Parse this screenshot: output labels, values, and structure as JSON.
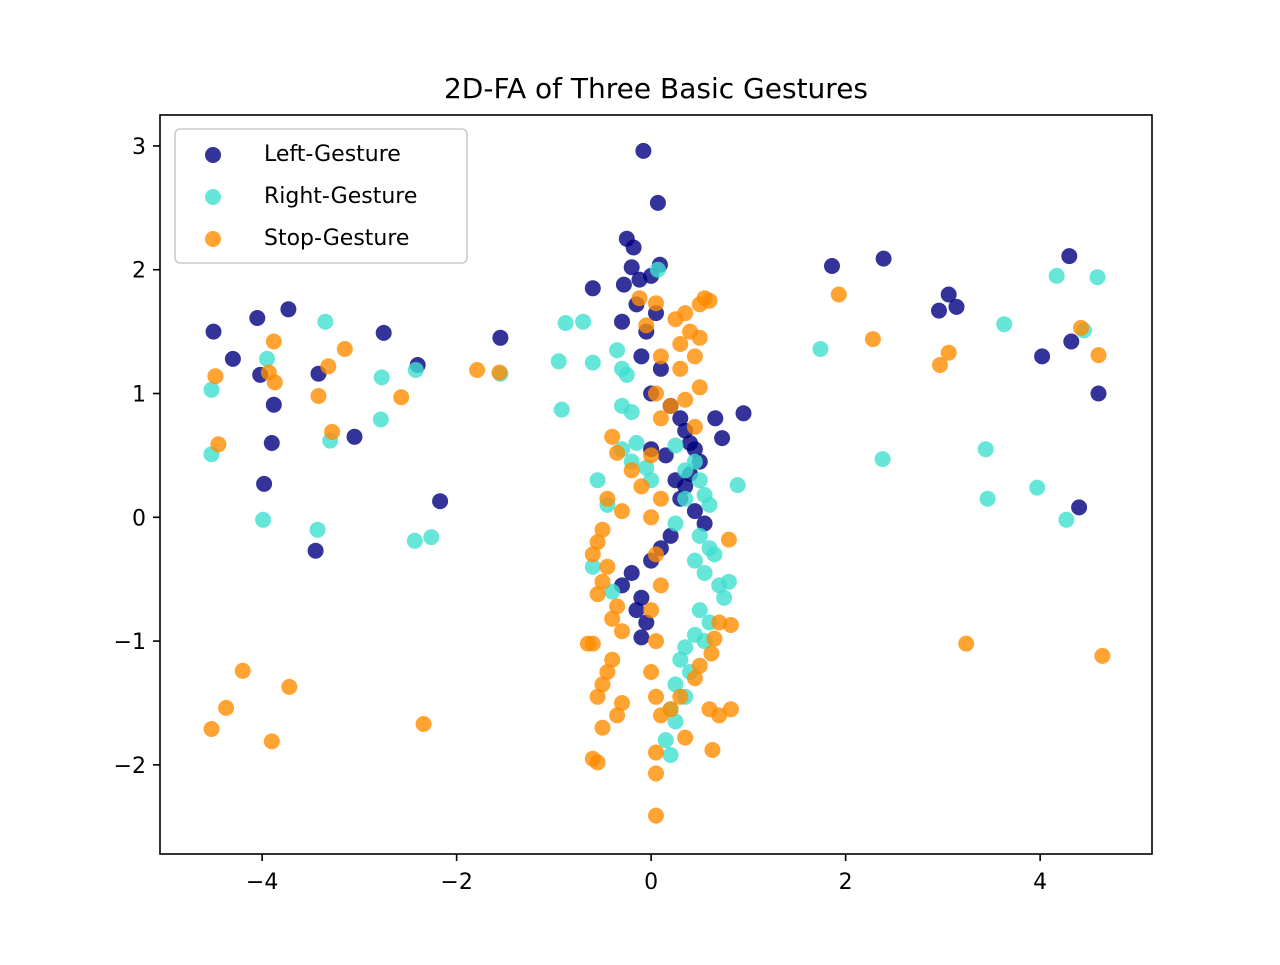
{
  "chart_data": {
    "type": "scatter",
    "title": "2D-FA of Three Basic Gestures",
    "xlabel": "",
    "ylabel": "",
    "xlim": [
      -5.05,
      5.15
    ],
    "ylim": [
      -2.72,
      3.25
    ],
    "xticks": [
      {
        "value": -4,
        "label": "−4"
      },
      {
        "value": -2,
        "label": "−2"
      },
      {
        "value": 0,
        "label": "0"
      },
      {
        "value": 2,
        "label": "2"
      },
      {
        "value": 4,
        "label": "4"
      }
    ],
    "yticks": [
      {
        "value": -2,
        "label": "−2"
      },
      {
        "value": -1,
        "label": "−1"
      },
      {
        "value": 0,
        "label": "0"
      },
      {
        "value": 1,
        "label": "1"
      },
      {
        "value": 2,
        "label": "2"
      },
      {
        "value": 3,
        "label": "3"
      }
    ],
    "grid": false,
    "legend_position": "top-left",
    "series": [
      {
        "name": "Left-Gesture",
        "color": "#000080",
        "points": [
          [
            -0.08,
            2.96
          ],
          [
            0.07,
            2.54
          ],
          [
            -0.25,
            2.25
          ],
          [
            -0.18,
            2.18
          ],
          [
            -0.2,
            2.02
          ],
          [
            0.09,
            2.04
          ],
          [
            -0.28,
            1.88
          ],
          [
            -0.6,
            1.85
          ],
          [
            -0.12,
            1.92
          ],
          [
            -0.3,
            1.58
          ],
          [
            0.0,
            1.95
          ],
          [
            -0.15,
            1.72
          ],
          [
            0.05,
            1.65
          ],
          [
            -0.05,
            1.5
          ],
          [
            -0.1,
            1.3
          ],
          [
            0.1,
            1.2
          ],
          [
            0.0,
            1.0
          ],
          [
            0.2,
            0.9
          ],
          [
            0.3,
            0.8
          ],
          [
            0.35,
            0.7
          ],
          [
            0.4,
            0.6
          ],
          [
            0.45,
            0.55
          ],
          [
            0.5,
            0.45
          ],
          [
            0.4,
            0.35
          ],
          [
            0.35,
            0.25
          ],
          [
            0.3,
            0.15
          ],
          [
            0.45,
            0.05
          ],
          [
            0.55,
            -0.05
          ],
          [
            0.2,
            -0.15
          ],
          [
            0.1,
            -0.25
          ],
          [
            0.0,
            -0.35
          ],
          [
            -0.2,
            -0.45
          ],
          [
            -0.3,
            -0.55
          ],
          [
            -0.1,
            -0.65
          ],
          [
            -0.15,
            -0.75
          ],
          [
            -0.05,
            -0.85
          ],
          [
            -0.1,
            -0.97
          ],
          [
            0.15,
            0.5
          ],
          [
            0.25,
            0.3
          ],
          [
            0.0,
            0.55
          ],
          [
            0.66,
            0.8
          ],
          [
            0.73,
            0.64
          ],
          [
            0.95,
            0.84
          ],
          [
            1.86,
            2.03
          ],
          [
            2.39,
            2.09
          ],
          [
            2.96,
            1.67
          ],
          [
            3.06,
            1.8
          ],
          [
            3.14,
            1.7
          ],
          [
            4.3,
            2.11
          ],
          [
            4.32,
            1.42
          ],
          [
            4.02,
            1.3
          ],
          [
            4.4,
            0.08
          ],
          [
            4.6,
            1.0
          ],
          [
            -4.5,
            1.5
          ],
          [
            -4.3,
            1.28
          ],
          [
            -4.05,
            1.61
          ],
          [
            -4.02,
            1.15
          ],
          [
            -3.73,
            1.68
          ],
          [
            -3.88,
            0.91
          ],
          [
            -3.9,
            0.6
          ],
          [
            -3.98,
            0.27
          ],
          [
            -3.42,
            1.16
          ],
          [
            -3.05,
            0.65
          ],
          [
            -2.75,
            1.49
          ],
          [
            -2.4,
            1.23
          ],
          [
            -2.17,
            0.13
          ],
          [
            -1.55,
            1.45
          ],
          [
            -3.45,
            -0.27
          ]
        ]
      },
      {
        "name": "Right-Gesture",
        "color": "#40E0D0",
        "points": [
          [
            0.07,
            2.0
          ],
          [
            -0.88,
            1.57
          ],
          [
            -0.7,
            1.58
          ],
          [
            -0.95,
            1.26
          ],
          [
            -0.35,
            1.35
          ],
          [
            -0.6,
            1.25
          ],
          [
            -0.3,
            1.2
          ],
          [
            -0.25,
            1.15
          ],
          [
            -0.92,
            0.87
          ],
          [
            -0.3,
            0.9
          ],
          [
            -0.2,
            0.85
          ],
          [
            -0.15,
            0.6
          ],
          [
            -0.3,
            0.55
          ],
          [
            -0.2,
            0.45
          ],
          [
            -0.05,
            0.4
          ],
          [
            0.0,
            0.3
          ],
          [
            0.25,
            0.58
          ],
          [
            0.35,
            0.38
          ],
          [
            0.45,
            0.45
          ],
          [
            0.5,
            0.3
          ],
          [
            0.55,
            0.18
          ],
          [
            0.6,
            0.1
          ],
          [
            0.35,
            0.15
          ],
          [
            0.25,
            -0.05
          ],
          [
            0.5,
            -0.15
          ],
          [
            0.6,
            -0.25
          ],
          [
            0.45,
            -0.35
          ],
          [
            0.55,
            -0.45
          ],
          [
            0.7,
            -0.55
          ],
          [
            0.75,
            -0.65
          ],
          [
            0.5,
            -0.75
          ],
          [
            0.6,
            -0.85
          ],
          [
            0.45,
            -0.95
          ],
          [
            0.35,
            -1.05
          ],
          [
            0.3,
            -1.15
          ],
          [
            0.4,
            -1.25
          ],
          [
            0.25,
            -1.35
          ],
          [
            0.35,
            -1.45
          ],
          [
            0.2,
            -1.55
          ],
          [
            0.25,
            -1.65
          ],
          [
            0.15,
            -1.8
          ],
          [
            0.2,
            -1.92
          ],
          [
            -0.55,
            0.3
          ],
          [
            -0.45,
            0.1
          ],
          [
            -0.6,
            -0.4
          ],
          [
            -0.4,
            -0.6
          ],
          [
            0.55,
            -1.0
          ],
          [
            0.8,
            -0.52
          ],
          [
            0.89,
            0.26
          ],
          [
            0.65,
            -0.3
          ],
          [
            1.74,
            1.36
          ],
          [
            2.38,
            0.47
          ],
          [
            3.44,
            0.55
          ],
          [
            3.46,
            0.15
          ],
          [
            3.63,
            1.56
          ],
          [
            3.97,
            0.24
          ],
          [
            4.17,
            1.95
          ],
          [
            4.27,
            -0.02
          ],
          [
            4.45,
            1.51
          ],
          [
            4.59,
            1.94
          ],
          [
            -4.52,
            1.03
          ],
          [
            -4.52,
            0.51
          ],
          [
            -3.95,
            1.28
          ],
          [
            -3.35,
            1.58
          ],
          [
            -3.3,
            0.62
          ],
          [
            -3.43,
            -0.1
          ],
          [
            -2.77,
            1.13
          ],
          [
            -2.78,
            0.79
          ],
          [
            -2.42,
            1.19
          ],
          [
            -2.43,
            -0.19
          ],
          [
            -2.26,
            -0.16
          ],
          [
            -1.55,
            1.16
          ],
          [
            -3.99,
            -0.02
          ]
        ]
      },
      {
        "name": "Stop-Gesture",
        "color": "#FF8C00",
        "points": [
          [
            0.05,
            1.73
          ],
          [
            -0.12,
            1.77
          ],
          [
            0.25,
            1.6
          ],
          [
            0.35,
            1.65
          ],
          [
            0.5,
            1.72
          ],
          [
            0.55,
            1.77
          ],
          [
            0.6,
            1.75
          ],
          [
            0.4,
            1.5
          ],
          [
            0.5,
            1.45
          ],
          [
            0.3,
            1.4
          ],
          [
            0.45,
            1.3
          ],
          [
            0.3,
            1.2
          ],
          [
            0.5,
            1.05
          ],
          [
            0.35,
            0.95
          ],
          [
            0.2,
            0.9
          ],
          [
            0.1,
            0.8
          ],
          [
            0.45,
            0.73
          ],
          [
            -0.4,
            0.65
          ],
          [
            -0.35,
            0.52
          ],
          [
            -0.2,
            0.38
          ],
          [
            -0.1,
            0.25
          ],
          [
            -0.45,
            0.15
          ],
          [
            -0.3,
            0.05
          ],
          [
            -0.5,
            -0.1
          ],
          [
            -0.55,
            -0.2
          ],
          [
            -0.6,
            -0.3
          ],
          [
            -0.45,
            -0.4
          ],
          [
            -0.5,
            -0.52
          ],
          [
            -0.55,
            -0.62
          ],
          [
            -0.35,
            -0.72
          ],
          [
            -0.4,
            -0.82
          ],
          [
            -0.3,
            -0.92
          ],
          [
            -0.6,
            -1.02
          ],
          [
            -0.65,
            -1.02
          ],
          [
            -0.4,
            -1.15
          ],
          [
            -0.45,
            -1.25
          ],
          [
            -0.5,
            -1.35
          ],
          [
            -0.55,
            -1.45
          ],
          [
            -0.3,
            -1.5
          ],
          [
            -0.35,
            -1.6
          ],
          [
            -0.5,
            -1.7
          ],
          [
            -0.6,
            -1.95
          ],
          [
            -0.55,
            -1.98
          ],
          [
            0.05,
            -1.9
          ],
          [
            0.05,
            -2.07
          ],
          [
            0.05,
            -2.41
          ],
          [
            0.2,
            -1.55
          ],
          [
            0.3,
            -1.45
          ],
          [
            0.45,
            -1.3
          ],
          [
            0.5,
            -1.2
          ],
          [
            0.62,
            -1.1
          ],
          [
            0.65,
            -0.98
          ],
          [
            0.7,
            -0.85
          ],
          [
            0.82,
            -0.87
          ],
          [
            0.8,
            -0.18
          ],
          [
            0.6,
            -1.55
          ],
          [
            0.7,
            -1.6
          ],
          [
            0.82,
            -1.55
          ],
          [
            0.63,
            -1.88
          ],
          [
            0.35,
            -1.78
          ],
          [
            0.0,
            0.0
          ],
          [
            0.1,
            0.15
          ],
          [
            0.05,
            -0.3
          ],
          [
            0.1,
            -0.55
          ],
          [
            0.0,
            -0.75
          ],
          [
            0.05,
            -1.0
          ],
          [
            0.0,
            -1.25
          ],
          [
            0.05,
            -1.45
          ],
          [
            0.1,
            -1.6
          ],
          [
            0.0,
            0.5
          ],
          [
            0.05,
            1.0
          ],
          [
            0.1,
            1.3
          ],
          [
            -0.05,
            1.55
          ],
          [
            1.93,
            1.8
          ],
          [
            2.28,
            1.44
          ],
          [
            2.97,
            1.23
          ],
          [
            3.06,
            1.33
          ],
          [
            3.24,
            -1.02
          ],
          [
            4.42,
            1.53
          ],
          [
            4.6,
            1.31
          ],
          [
            4.64,
            -1.12
          ],
          [
            -4.48,
            1.14
          ],
          [
            -4.45,
            0.59
          ],
          [
            -4.52,
            -1.71
          ],
          [
            -4.2,
            -1.24
          ],
          [
            -4.37,
            -1.54
          ],
          [
            -3.88,
            1.42
          ],
          [
            -3.87,
            1.09
          ],
          [
            -3.93,
            1.17
          ],
          [
            -3.72,
            -1.37
          ],
          [
            -3.9,
            -1.81
          ],
          [
            -3.42,
            0.98
          ],
          [
            -3.32,
            1.22
          ],
          [
            -3.28,
            0.69
          ],
          [
            -3.15,
            1.36
          ],
          [
            -2.57,
            0.97
          ],
          [
            -2.34,
            -1.67
          ],
          [
            -1.79,
            1.19
          ],
          [
            -1.56,
            1.17
          ]
        ]
      }
    ]
  }
}
